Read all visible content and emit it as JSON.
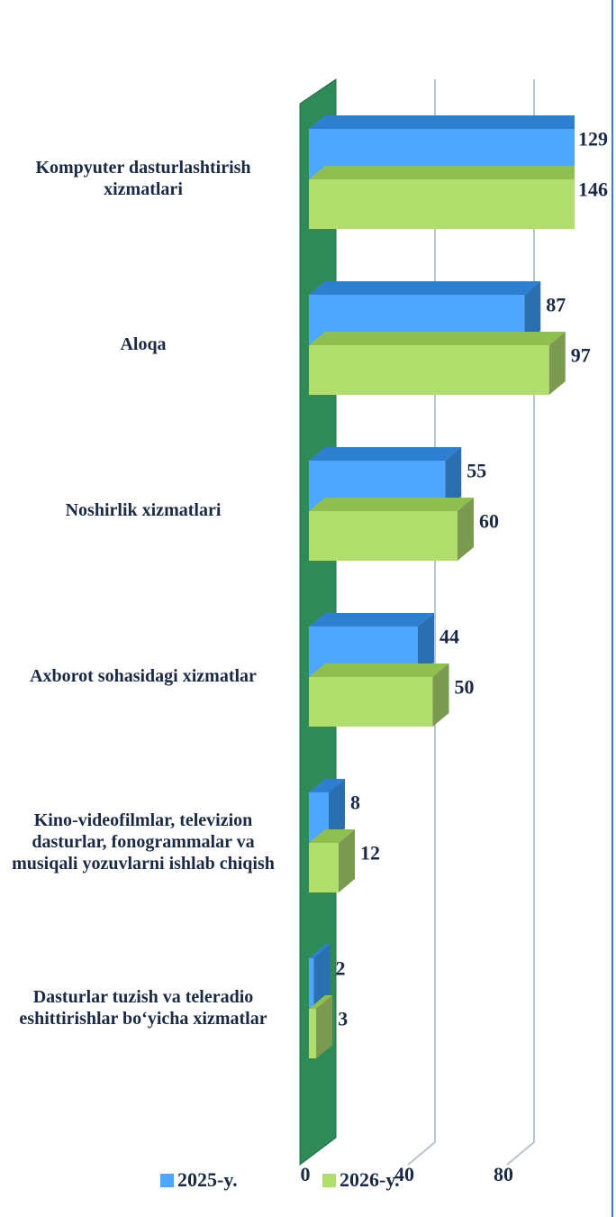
{
  "chart_data": {
    "type": "bar3d_horizontal",
    "categories": [
      "Kompyuter dasturlashtirish xizmatlari",
      "Aloqa",
      "Noshirlik xizmatlari",
      "Axborot sohasidagi xizmatlar",
      "Kino-videofilmlar, televizion dasturlar, fonogrammalar va musiqali yozuvlarni ishlab chiqish",
      "Dasturlar tuzish  va teleradio eshittirishlar bo‘yicha xizmatlar"
    ],
    "series": [
      {
        "name": "2025-y.",
        "color": "#4da6ff",
        "values": [
          129,
          87,
          55,
          44,
          8,
          2
        ]
      },
      {
        "name": "2026-y.",
        "color": "#b0dd6c",
        "values": [
          146,
          97,
          60,
          50,
          12,
          3
        ]
      }
    ],
    "xlim": [
      0,
      100
    ],
    "xticks": [
      0,
      40,
      80
    ],
    "grid": true,
    "legend": "bottom"
  }
}
